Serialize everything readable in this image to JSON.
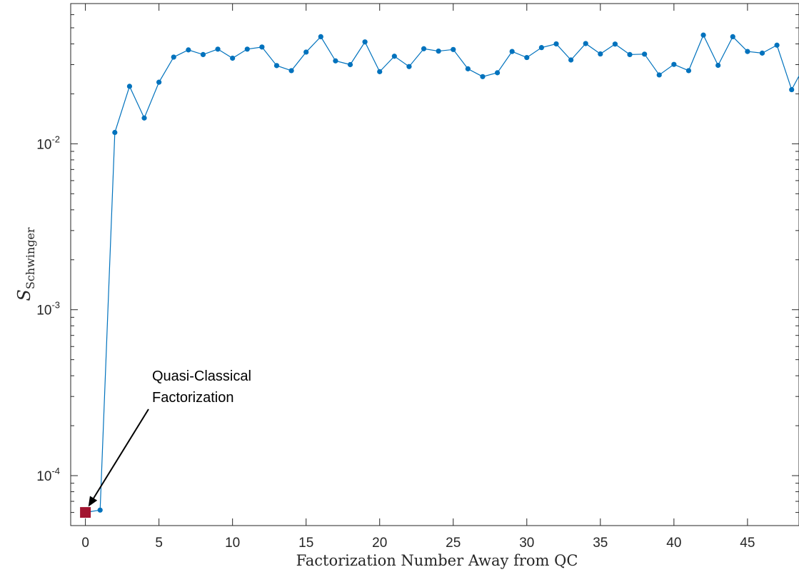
{
  "chart_data": {
    "type": "line",
    "xlabel": "Factorization Number Away from QC",
    "ylabel": {
      "main": "S",
      "sub": "Schwinger"
    },
    "y_scale": "log",
    "xlim": [
      -1,
      48.5
    ],
    "ylim": [
      5e-05,
      0.07
    ],
    "x_ticks": [
      0,
      5,
      10,
      15,
      20,
      25,
      30,
      35,
      40,
      45
    ],
    "y_ticks": [
      {
        "value": 0.0001,
        "base": "10",
        "exp": "-4"
      },
      {
        "value": 0.001,
        "base": "10",
        "exp": "-3"
      },
      {
        "value": 0.01,
        "base": "10",
        "exp": "-2"
      }
    ],
    "grid": false,
    "series": [
      {
        "color": "#0072BD",
        "x": [
          0,
          1,
          2,
          3,
          4,
          5,
          6,
          7,
          8,
          9,
          10,
          11,
          12,
          13,
          14,
          15,
          16,
          17,
          18,
          19,
          20,
          21,
          22,
          23,
          24,
          25,
          26,
          27,
          28,
          29,
          30,
          31,
          32,
          33,
          34,
          35,
          36,
          37,
          38,
          39,
          40,
          41,
          42,
          43,
          44,
          45,
          46,
          47,
          48,
          49
        ],
        "values": [
          6e-05,
          6.2e-05,
          0.0117,
          0.0222,
          0.0143,
          0.0235,
          0.0333,
          0.0368,
          0.0345,
          0.0372,
          0.0328,
          0.0372,
          0.0383,
          0.0296,
          0.0276,
          0.0357,
          0.0442,
          0.0316,
          0.03,
          0.0411,
          0.0272,
          0.0337,
          0.0292,
          0.0374,
          0.0362,
          0.037,
          0.0283,
          0.0254,
          0.0268,
          0.036,
          0.0331,
          0.038,
          0.04,
          0.032,
          0.0402,
          0.0348,
          0.0399,
          0.0345,
          0.0347,
          0.026,
          0.0301,
          0.0276,
          0.0452,
          0.0297,
          0.0442,
          0.036,
          0.0352,
          0.0393,
          0.0212,
          0.031
        ]
      }
    ],
    "highlight": {
      "x": 0,
      "value": 6e-05,
      "color": "#A2142F",
      "shape": "square"
    },
    "annotation": {
      "lines": [
        "Quasi-Classical",
        "Factorization"
      ],
      "arrow_target": {
        "x": 0.2,
        "value": 6.5e-05
      }
    }
  }
}
